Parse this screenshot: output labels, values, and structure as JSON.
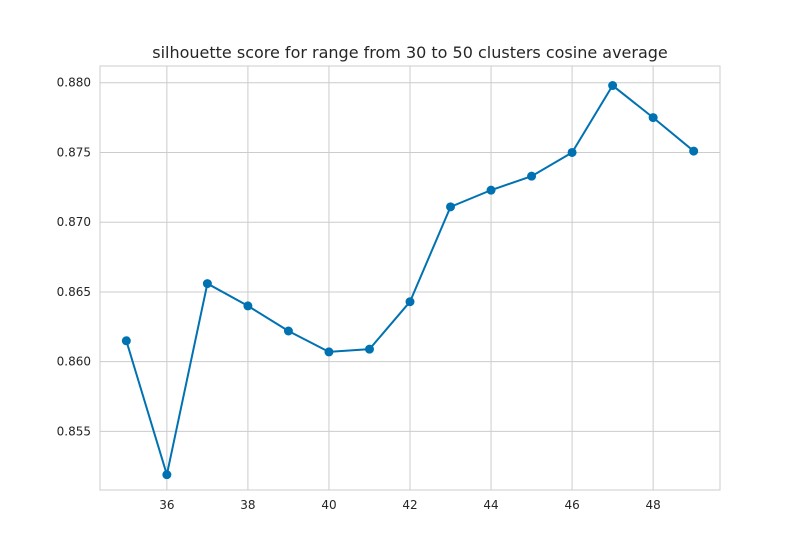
{
  "chart_data": {
    "type": "line",
    "title": "silhouette score for range from 30 to 50 clusters cosine average",
    "xlabel": "",
    "ylabel": "",
    "xlim": [
      34.35,
      49.65
    ],
    "ylim": [
      0.8508,
      0.8812
    ],
    "x_ticks": [
      36,
      38,
      40,
      42,
      44,
      46,
      48
    ],
    "y_ticks": [
      0.855,
      0.86,
      0.865,
      0.87,
      0.875,
      0.88
    ],
    "y_tick_labels": [
      "0.855",
      "0.860",
      "0.865",
      "0.870",
      "0.875",
      "0.880"
    ],
    "grid": true,
    "legend": "none",
    "series": [
      {
        "color": "#0072b2",
        "x": [
          35,
          36,
          37,
          38,
          39,
          40,
          41,
          42,
          43,
          44,
          45,
          46,
          47,
          48,
          49
        ],
        "y": [
          0.8615,
          0.8519,
          0.8656,
          0.864,
          0.8622,
          0.8607,
          0.8609,
          0.8643,
          0.8711,
          0.8723,
          0.8733,
          0.875,
          0.8798,
          0.8775,
          0.8751
        ]
      }
    ]
  }
}
